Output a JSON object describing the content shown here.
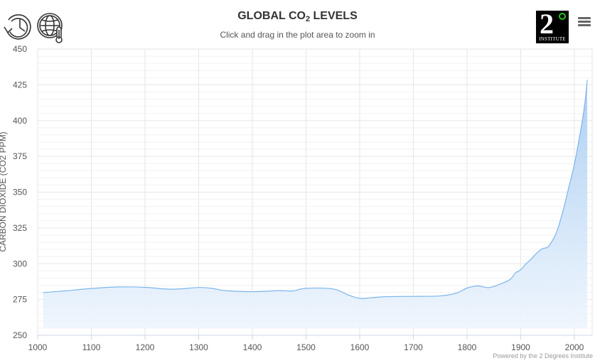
{
  "header": {
    "title_main": "GLOBAL CO",
    "title_sub": "2",
    "title_tail": " LEVELS",
    "subtitle": "Click and drag in the plot area to zoom in"
  },
  "toolbar": {
    "history_icon": "clock-rewind-icon",
    "globe_icon": "globe-thermometer-icon",
    "menu_icon": "hamburger-menu-icon"
  },
  "logo": {
    "numeral": "2",
    "label": "INSTITUTE",
    "degree_color": "#21c21d"
  },
  "credits": "Powered by the 2 Degrees Institute",
  "colors": {
    "line": "#7cb5ec",
    "fill_top": "#a9cdf2",
    "fill_bottom": "#eef5fd",
    "grid": "#e6e6e6",
    "axis": "#ccd6eb"
  },
  "chart_data": {
    "type": "area",
    "title": "GLOBAL CO2 LEVELS",
    "subtitle": "Click and drag in the plot area to zoom in",
    "xlabel": "",
    "ylabel": "CARBON DIOXIDE (CO2 PPM)",
    "xlim": [
      1000,
      2030
    ],
    "ylim": [
      250,
      450
    ],
    "x_ticks": [
      1000,
      1100,
      1200,
      1300,
      1400,
      1500,
      1600,
      1700,
      1800,
      1900,
      2000
    ],
    "y_ticks": [
      250,
      275,
      300,
      325,
      350,
      375,
      400,
      425,
      450
    ],
    "y_minor_step": 5,
    "grid": true,
    "legend": false,
    "x": [
      1010,
      1050,
      1100,
      1150,
      1200,
      1250,
      1300,
      1325,
      1350,
      1400,
      1450,
      1475,
      1500,
      1550,
      1580,
      1600,
      1620,
      1650,
      1700,
      1750,
      1780,
      1800,
      1820,
      1840,
      1860,
      1880,
      1890,
      1900,
      1910,
      1920,
      1930,
      1940,
      1950,
      1958,
      1965,
      1970,
      1980,
      1990,
      2000,
      2010,
      2015,
      2020,
      2024
    ],
    "values": [
      279.8,
      281,
      282.7,
      283.8,
      283.5,
      282.2,
      283.4,
      282.8,
      281.2,
      280.5,
      281.2,
      281,
      282.8,
      282.4,
      278,
      275.8,
      276.2,
      277,
      277.2,
      277.5,
      279.5,
      283,
      284.5,
      283.3,
      285.5,
      289,
      293.5,
      295.8,
      300,
      303.5,
      307.5,
      310.5,
      311.5,
      315.5,
      320.5,
      325.5,
      338.5,
      354,
      369.5,
      389.5,
      400.5,
      413.5,
      428.5
    ]
  }
}
